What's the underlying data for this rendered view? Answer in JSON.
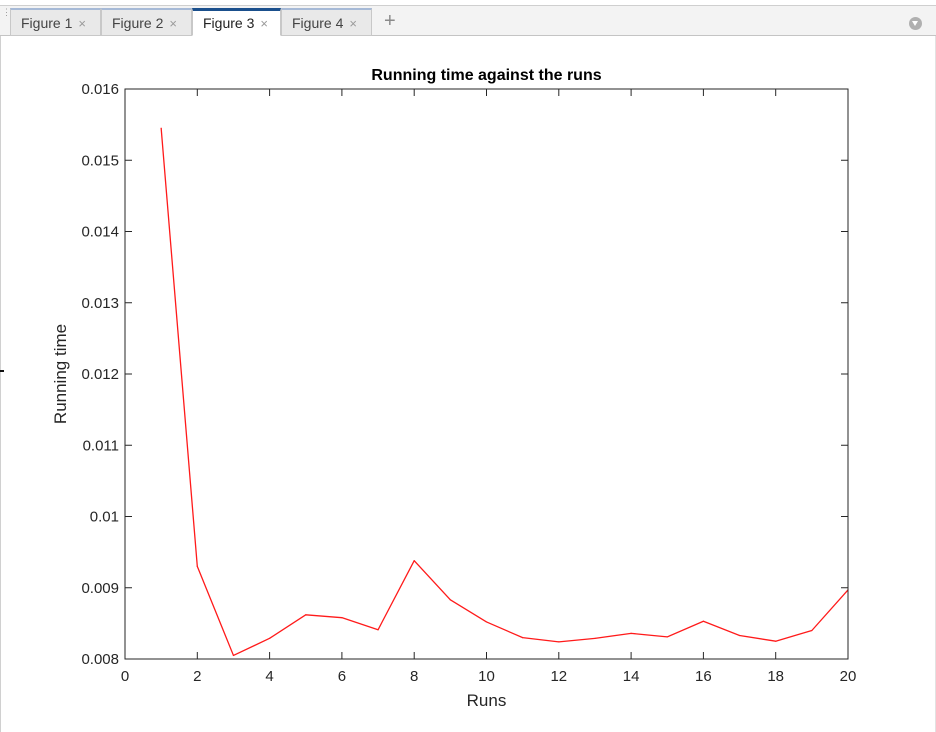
{
  "tabs": [
    {
      "label": "Figure 1",
      "close": "×",
      "active": false
    },
    {
      "label": "Figure 2",
      "close": "×",
      "active": false
    },
    {
      "label": "Figure 3",
      "close": "×",
      "active": true
    },
    {
      "label": "Figure 4",
      "close": "×",
      "active": false
    }
  ],
  "add_tab_glyph": "+",
  "icons": {
    "grip": "grip-icon",
    "add": "plus-icon",
    "menu": "dropdown-menu-icon",
    "close": "close-icon"
  },
  "chart_data": {
    "type": "line",
    "title": "Running time against the runs",
    "xlabel": "Runs",
    "ylabel": "Running time",
    "xlim": [
      0,
      20
    ],
    "ylim": [
      0.008,
      0.016
    ],
    "xticks": [
      0,
      2,
      4,
      6,
      8,
      10,
      12,
      14,
      16,
      18,
      20
    ],
    "xtick_labels": [
      "0",
      "2",
      "4",
      "6",
      "8",
      "10",
      "12",
      "14",
      "16",
      "18",
      "20"
    ],
    "yticks": [
      0.008,
      0.009,
      0.01,
      0.011,
      0.012,
      0.013,
      0.014,
      0.015,
      0.016
    ],
    "ytick_labels": [
      "0.008",
      "0.009",
      "0.01",
      "0.011",
      "0.012",
      "0.013",
      "0.014",
      "0.015",
      "0.016"
    ],
    "grid": false,
    "series": [
      {
        "color": "#ff1a1a",
        "x": [
          1,
          2,
          3,
          4,
          5,
          6,
          7,
          8,
          9,
          10,
          11,
          12,
          13,
          14,
          15,
          16,
          17,
          18,
          19,
          20
        ],
        "y": [
          0.01545,
          0.0093,
          0.00805,
          0.00829,
          0.00862,
          0.00858,
          0.00841,
          0.00938,
          0.00883,
          0.00852,
          0.0083,
          0.00824,
          0.00829,
          0.00836,
          0.00831,
          0.00853,
          0.00833,
          0.00825,
          0.0084,
          0.00897
        ]
      }
    ]
  }
}
